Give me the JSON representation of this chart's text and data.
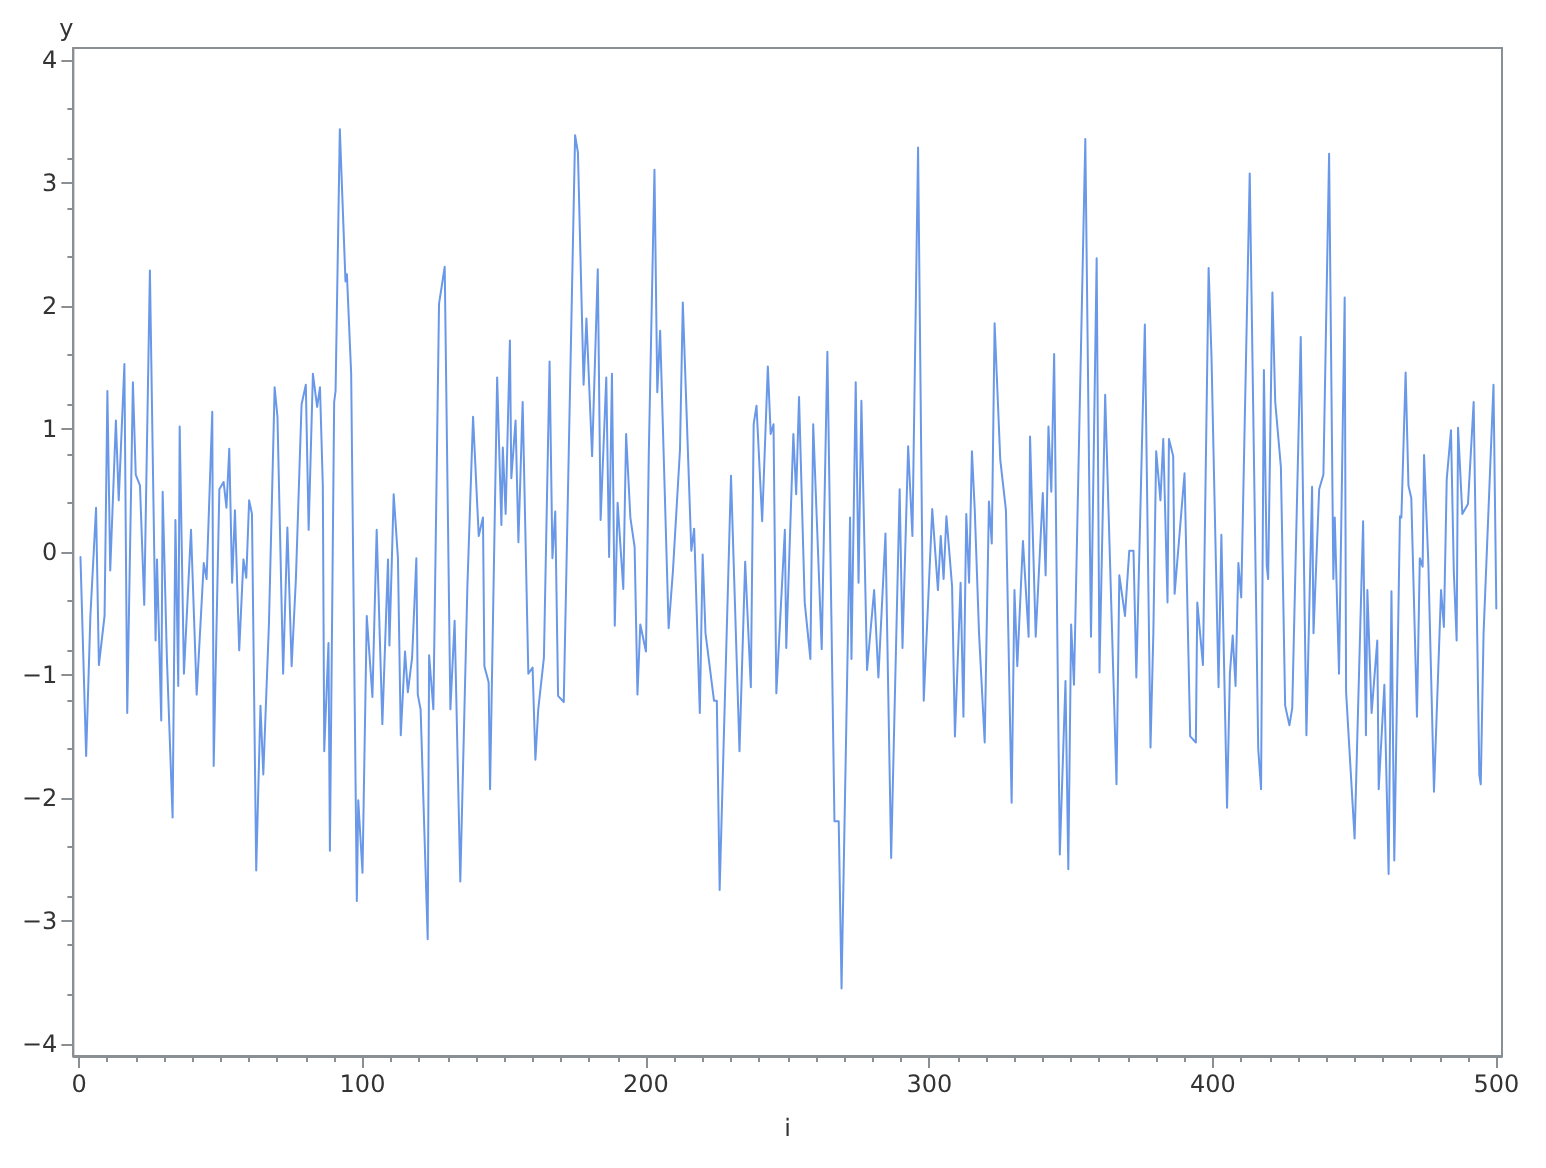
{
  "chart_data": {
    "type": "line",
    "xlabel": "i",
    "ylabel": "y",
    "xlim": [
      -2,
      502
    ],
    "ylim": [
      -4.1,
      4.1
    ],
    "xticks": [
      0,
      100,
      200,
      300,
      400,
      500
    ],
    "yticks": [
      -4,
      -3,
      -2,
      -1,
      0,
      1,
      2,
      3,
      4
    ],
    "grid": false,
    "marker": "none",
    "line_style": "solid",
    "x": [
      0.5,
      2.5,
      4,
      6,
      7,
      9,
      10,
      11,
      13,
      14,
      16,
      17,
      19,
      20,
      21.5,
      23,
      25,
      27,
      27.5,
      29,
      29.5,
      31,
      33,
      34,
      35,
      35.5,
      37,
      39.5,
      41.5,
      44,
      45,
      47,
      47.5,
      49.5,
      51,
      52,
      53,
      54,
      55,
      56.5,
      58,
      59,
      60,
      61,
      62.5,
      64,
      65,
      67,
      69,
      70,
      72,
      73.5,
      75,
      76.5,
      78.5,
      80,
      81,
      82.5,
      84,
      85,
      86,
      86.5,
      88,
      88.5,
      90,
      90.5,
      92,
      94,
      94.5,
      96,
      98,
      98.5,
      100,
      101.5,
      103.5,
      105,
      107,
      109,
      109.5,
      111,
      112.5,
      113.5,
      115,
      116,
      117.5,
      119,
      119.5,
      120.5,
      123,
      123.5,
      125,
      127,
      129,
      131,
      132.5,
      134.5,
      137,
      139,
      141,
      142.5,
      143,
      144.5,
      145,
      147.5,
      149,
      149.5,
      150.5,
      152,
      152.5,
      154,
      155,
      156.5,
      158.5,
      160,
      161,
      162,
      164,
      166,
      167,
      168,
      169,
      171,
      175,
      176,
      178,
      179,
      181,
      183,
      184,
      186,
      187,
      188,
      189,
      190,
      192,
      193,
      194.5,
      196,
      197,
      198,
      200,
      201,
      203,
      204,
      205,
      208,
      209.5,
      212,
      213,
      216,
      217,
      219,
      220,
      221,
      224,
      225,
      226,
      230,
      233,
      235,
      237,
      238,
      239,
      241,
      243,
      244,
      245,
      246,
      249,
      249.5,
      252,
      253,
      254,
      256,
      258,
      259,
      262,
      264,
      266.5,
      268,
      269,
      272,
      272.5,
      274,
      275,
      276,
      278,
      280.5,
      282,
      284.5,
      286.5,
      289.5,
      290.5,
      292.5,
      294,
      296,
      298,
      301,
      303,
      304,
      305,
      306,
      308,
      309,
      311,
      312,
      313,
      314,
      315,
      316,
      317.5,
      319.5,
      321,
      322,
      323,
      325,
      327,
      329,
      330,
      331,
      333,
      335,
      335.5,
      337.5,
      340,
      341,
      342,
      343,
      344,
      346,
      348,
      349,
      350,
      351,
      355,
      357,
      359,
      360,
      362,
      366,
      367,
      369,
      370.5,
      372,
      373,
      376,
      378,
      379,
      380,
      381.5,
      382.5,
      384,
      384.5,
      386,
      386.5,
      390,
      392,
      394,
      394.5,
      396.5,
      398.5,
      399.5,
      402,
      403,
      405,
      406,
      407,
      408,
      409,
      410,
      413,
      416,
      417,
      418,
      419,
      419.5,
      421,
      422,
      424,
      425.5,
      427,
      428,
      431,
      433,
      435,
      435.5,
      437.5,
      439,
      441,
      442.5,
      443,
      444.5,
      446.5,
      447,
      450,
      453,
      454,
      454.5,
      456,
      458,
      458.5,
      460.5,
      462,
      463,
      464,
      466,
      466.5,
      468,
      469,
      470,
      472,
      473,
      474,
      474.5,
      476,
      478,
      480.5,
      481.5,
      482.5,
      484,
      485,
      486,
      486.5,
      488,
      490,
      492,
      494,
      494.5,
      495.5,
      499,
      500
    ],
    "series": [
      {
        "color": "#6a98e8",
        "values": [
          -0.04,
          -1.66,
          -0.52,
          0.36,
          -0.92,
          -0.52,
          1.31,
          -0.15,
          1.07,
          0.42,
          1.53,
          -1.31,
          1.38,
          0.63,
          0.54,
          -0.43,
          2.29,
          -0.72,
          -0.06,
          -1.37,
          0.49,
          -0.87,
          -2.16,
          0.26,
          -1.09,
          1.02,
          -0.99,
          0.18,
          -1.16,
          -0.09,
          -0.22,
          1.14,
          -1.74,
          0.51,
          0.57,
          0.36,
          0.84,
          -0.25,
          0.34,
          -0.8,
          -0.06,
          -0.21,
          0.42,
          0.31,
          -2.59,
          -1.25,
          -1.81,
          -0.58,
          1.34,
          1.1,
          -0.99,
          0.2,
          -0.93,
          -0.22,
          1.2,
          1.36,
          0.18,
          1.45,
          1.18,
          1.34,
          0.54,
          -1.62,
          -0.74,
          -2.43,
          1.22,
          1.31,
          3.44,
          2.2,
          2.26,
          1.45,
          -2.84,
          -2.02,
          -2.61,
          -0.52,
          -1.18,
          0.18,
          -1.4,
          -0.06,
          -0.76,
          0.47,
          -0.05,
          -1.49,
          -0.81,
          -1.14,
          -0.86,
          -0.05,
          -1.16,
          -1.28,
          -3.15,
          -0.84,
          -1.28,
          2.02,
          2.32,
          -1.28,
          -0.56,
          -2.68,
          -0.28,
          1.1,
          0.13,
          0.28,
          -0.93,
          -1.06,
          -1.93,
          1.42,
          0.22,
          0.85,
          0.31,
          1.72,
          0.6,
          1.07,
          0.08,
          1.22,
          -0.99,
          -0.94,
          -1.69,
          -1.28,
          -0.86,
          1.55,
          -0.05,
          0.33,
          -1.17,
          -1.22,
          3.39,
          3.25,
          1.36,
          1.9,
          0.78,
          2.3,
          0.26,
          1.42,
          -0.04,
          1.45,
          -0.6,
          0.4,
          -0.3,
          0.96,
          0.28,
          0.04,
          -1.16,
          -0.59,
          -0.81,
          0.8,
          3.11,
          1.3,
          1.8,
          -0.62,
          -0.16,
          0.83,
          2.03,
          0.01,
          0.19,
          -1.31,
          -0.02,
          -0.66,
          -1.21,
          -1.21,
          -2.75,
          0.62,
          -1.62,
          -0.08,
          -1.1,
          1.04,
          1.19,
          0.25,
          1.51,
          0.96,
          1.04,
          -1.15,
          0.18,
          -0.78,
          0.96,
          0.47,
          1.26,
          -0.41,
          -0.87,
          1.04,
          -0.79,
          1.63,
          -2.19,
          -2.19,
          -3.55,
          0.28,
          -0.87,
          1.38,
          -0.25,
          1.23,
          -0.96,
          -0.31,
          -1.02,
          0.15,
          -2.49,
          0.51,
          -0.78,
          0.86,
          0.13,
          3.29,
          -1.21,
          0.35,
          -0.31,
          0.13,
          -0.22,
          0.29,
          -0.28,
          -1.5,
          -0.25,
          -1.34,
          0.31,
          -0.25,
          0.82,
          0.34,
          -0.66,
          -1.55,
          0.41,
          0.07,
          1.86,
          0.75,
          0.34,
          -2.04,
          -0.31,
          -0.93,
          0.09,
          -0.69,
          0.94,
          -0.69,
          0.48,
          -0.19,
          1.02,
          0.49,
          1.61,
          -2.46,
          -1.05,
          -2.58,
          -0.59,
          -1.08,
          3.36,
          -0.69,
          2.39,
          -0.98,
          1.28,
          -1.89,
          -0.19,
          -0.52,
          0.01,
          0.01,
          -1.02,
          1.85,
          -1.59,
          -0.66,
          0.82,
          0.42,
          0.92,
          -0.41,
          0.92,
          0.78,
          -0.34,
          0.64,
          -1.5,
          -1.55,
          -0.41,
          -0.92,
          2.31,
          1.6,
          -1.1,
          0.14,
          -2.08,
          -0.99,
          -0.68,
          -1.09,
          -0.09,
          -0.37,
          3.08,
          -1.6,
          -1.93,
          1.48,
          -0.11,
          -0.22,
          2.11,
          1.22,
          0.69,
          -1.25,
          -1.41,
          -1.27,
          1.75,
          -1.49,
          0.53,
          -0.66,
          0.51,
          0.63,
          3.24,
          -0.22,
          0.28,
          -0.99,
          2.07,
          -1.14,
          -2.33,
          0.25,
          -1.49,
          -0.31,
          -1.31,
          -0.72,
          -1.93,
          -1.08,
          -2.62,
          -0.32,
          -2.51,
          0.29,
          0.28,
          1.46,
          0.54,
          0.44,
          -1.34,
          -0.05,
          -0.12,
          0.79,
          -0.08,
          -1.95,
          -0.31,
          -0.61,
          0.59,
          0.99,
          -0.16,
          -0.72,
          1.01,
          0.31,
          0.39,
          1.22,
          -1.81,
          -1.89,
          -0.66,
          1.36,
          -0.46
        ]
      }
    ]
  }
}
